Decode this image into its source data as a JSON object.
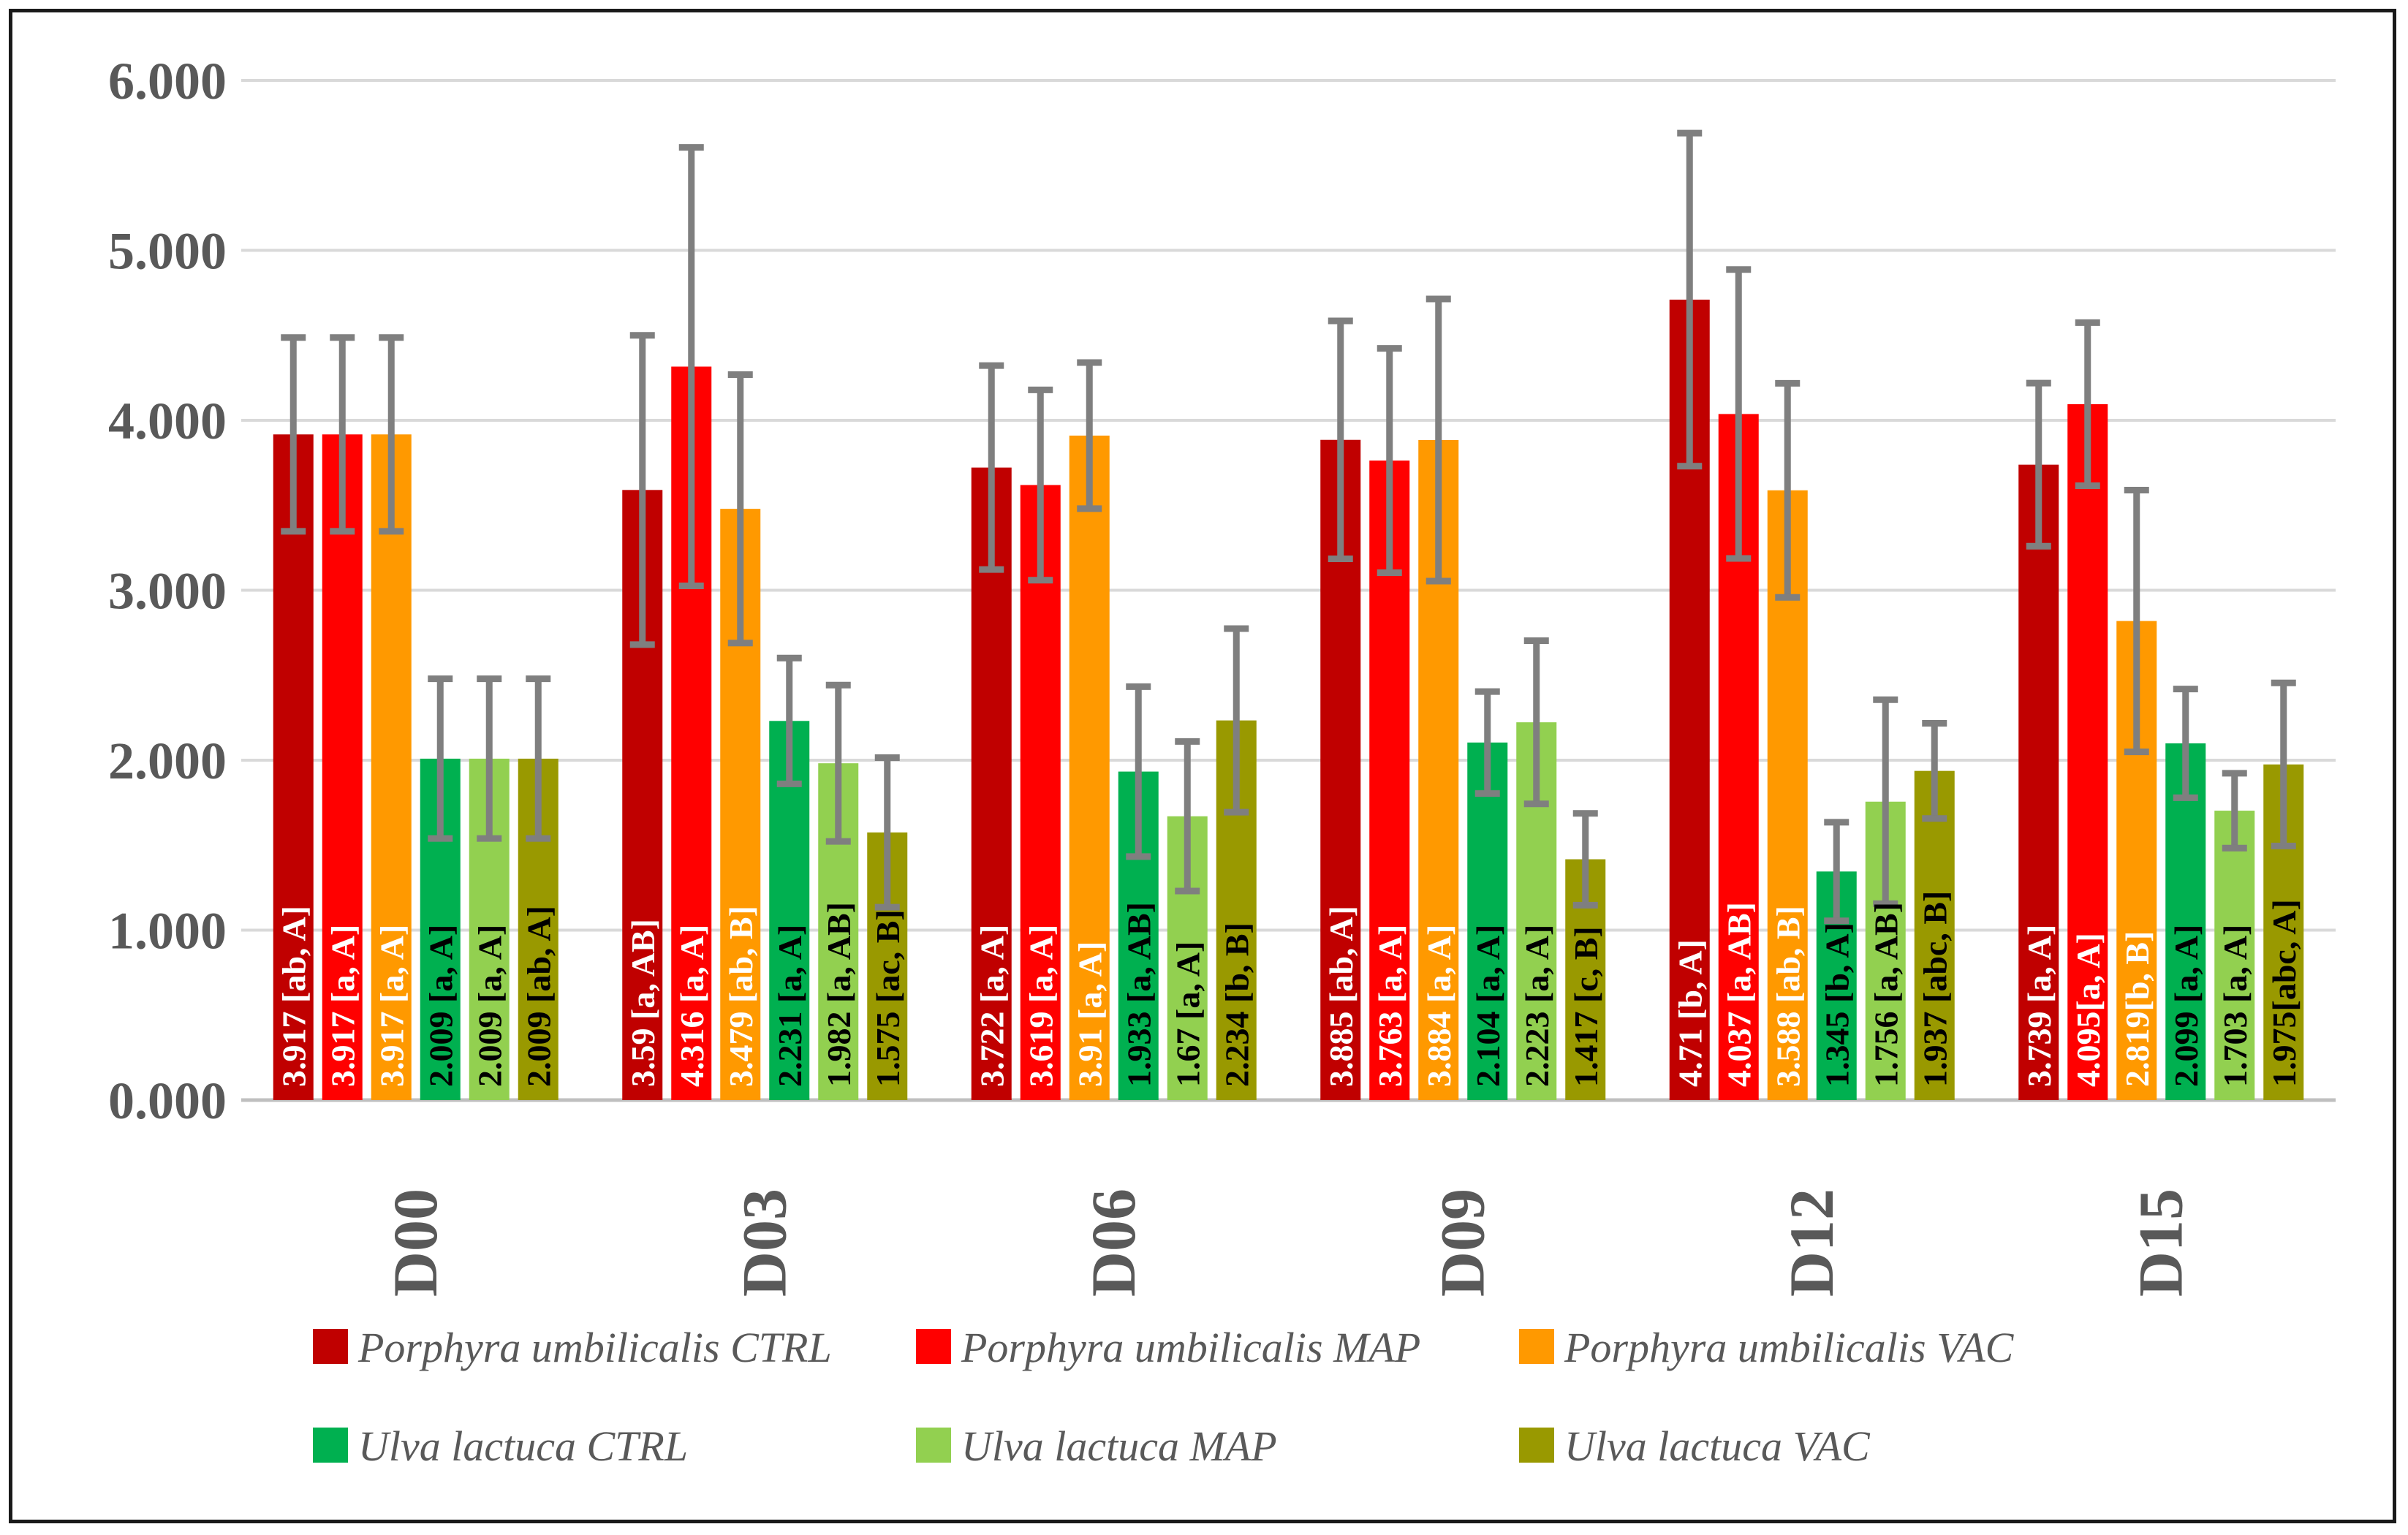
{
  "chart_data": {
    "type": "bar",
    "title": "",
    "xlabel": "",
    "ylabel": "",
    "ylim": [
      0,
      6
    ],
    "yticks": [
      "0.000",
      "1.000",
      "2.000",
      "3.000",
      "4.000",
      "5.000",
      "6.000"
    ],
    "grid": true,
    "legend_position": "bottom",
    "categories": [
      "D00",
      "D03",
      "D06",
      "D09",
      "D12",
      "D15"
    ],
    "series": [
      {
        "name": "Porphyra umbilicalis CTRL",
        "color": "#C00000",
        "label_color": "#FFFFFF",
        "values": [
          3.917,
          3.59,
          3.722,
          3.885,
          4.71,
          3.739
        ],
        "errors": [
          0.57,
          0.91,
          0.6,
          0.7,
          0.98,
          0.48
        ],
        "labels": [
          "3.917 [ab, A]",
          "3.59 [a, AB]",
          "3.722 [a, A]",
          "3.885 [ab, A]",
          "4.71 [b, A]",
          "3.739 [a, A]"
        ]
      },
      {
        "name": "Porphyra umbilicalis MAP",
        "color": "#FF0000",
        "label_color": "#FFFFFF",
        "values": [
          3.917,
          4.316,
          3.619,
          3.763,
          4.037,
          4.095
        ],
        "errors": [
          0.57,
          1.29,
          0.56,
          0.66,
          0.85,
          0.48
        ],
        "labels": [
          "3.917 [a, A]",
          "4.316 [a, A]",
          "3.619 [a, A]",
          "3.763 [a, A]",
          "4.037 [a, AB]",
          "4.095[a, A]"
        ]
      },
      {
        "name": "Porphyra umbilicalis VAC",
        "color": "#FF9900",
        "label_color": "#FFFFFF",
        "values": [
          3.917,
          3.479,
          3.91,
          3.884,
          3.588,
          2.819
        ],
        "errors": [
          0.57,
          0.79,
          0.43,
          0.83,
          0.63,
          0.77
        ],
        "labels": [
          "3.917 [a, A]",
          "3.479 [ab, B]",
          "3.91 [a, A]",
          "3.884 [a, A]",
          "3.588 [ab, B]",
          "2.819[b, B]"
        ]
      },
      {
        "name": "Ulva lactuca CTRL",
        "color": "#00B050",
        "label_color": "#000000",
        "values": [
          2.009,
          2.231,
          1.933,
          2.104,
          1.345,
          2.099
        ],
        "errors": [
          0.47,
          0.37,
          0.5,
          0.3,
          0.29,
          0.32
        ],
        "labels": [
          "2.009 [a, A]",
          "2.231 [a, A]",
          "1.933 [a, AB]",
          "2.104 [a, A]",
          "1.345 [b, A]",
          "2.099 [a, A]"
        ]
      },
      {
        "name": "Ulva lactuca MAP",
        "color": "#92D050",
        "label_color": "#000000",
        "values": [
          2.009,
          1.982,
          1.67,
          2.223,
          1.756,
          1.703
        ],
        "errors": [
          0.47,
          0.46,
          0.44,
          0.48,
          0.6,
          0.22
        ],
        "labels": [
          "2.009 [a, A]",
          "1.982 [a, AB]",
          "1.67 [a, A]",
          "2.223 [a, A]",
          "1.756 [a, AB]",
          "1.703 [a, A]"
        ]
      },
      {
        "name": "Ulva lactuca VAC",
        "color": "#999900",
        "label_color": "#000000",
        "values": [
          2.009,
          1.575,
          2.234,
          1.417,
          1.937,
          1.975
        ],
        "errors": [
          0.47,
          0.44,
          0.54,
          0.27,
          0.28,
          0.48
        ],
        "labels": [
          "2.009 [ab, A]",
          "1.575 [ac, B]",
          "2.234 [b, B]",
          "1.417 [c, B]",
          "1.937 [abc, B]",
          "1.975[abc, A]"
        ]
      }
    ]
  }
}
